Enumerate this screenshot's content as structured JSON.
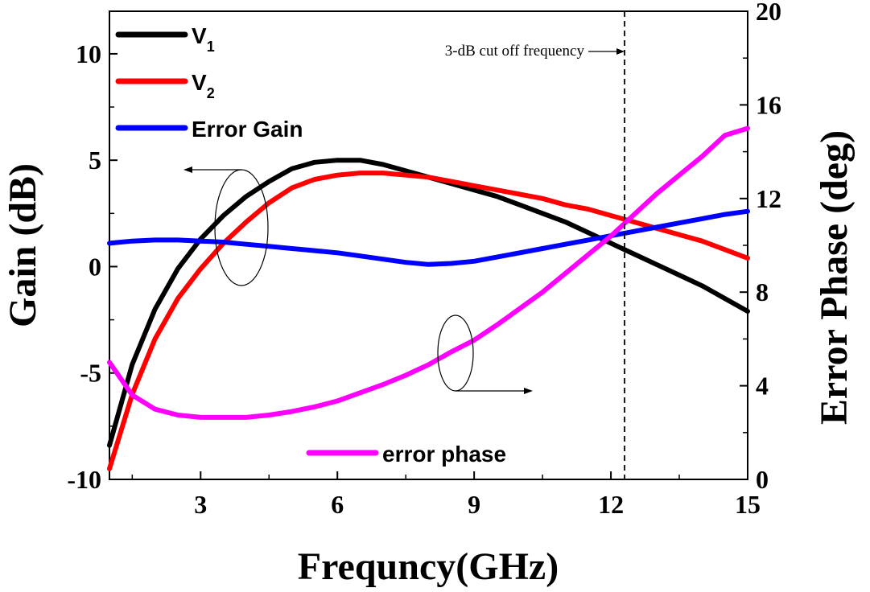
{
  "chart_data": {
    "type": "line",
    "title": "",
    "xlabel": "Frequncy(GHz)",
    "ylabel": "Gain (dB)",
    "y2label": "Error Phase (deg)",
    "xlim": [
      1,
      15
    ],
    "ylim": [
      -10,
      12
    ],
    "y2lim": [
      0,
      20
    ],
    "xticks": [
      3,
      6,
      9,
      12,
      15
    ],
    "yticks": [
      -10,
      -5,
      0,
      5,
      10
    ],
    "y2ticks": [
      0,
      4,
      8,
      12,
      16,
      20
    ],
    "grid": false,
    "legend_position": "top-left",
    "series": [
      {
        "name": "V1",
        "label_main": "V",
        "label_sub": "1",
        "axis": "left",
        "color": "#000000",
        "x": [
          1.0,
          1.5,
          2.0,
          2.5,
          3.0,
          3.5,
          4.0,
          4.5,
          5.0,
          5.5,
          6.0,
          6.5,
          7.0,
          7.5,
          8.0,
          8.5,
          9.0,
          9.5,
          10.0,
          10.5,
          11.0,
          11.5,
          12.0,
          12.5,
          13.0,
          13.5,
          14.0,
          14.5,
          15.0
        ],
        "y": [
          -8.4,
          -4.6,
          -2.0,
          -0.1,
          1.3,
          2.4,
          3.3,
          4.0,
          4.6,
          4.9,
          5.0,
          5.0,
          4.8,
          4.5,
          4.2,
          3.9,
          3.6,
          3.3,
          2.9,
          2.5,
          2.1,
          1.6,
          1.1,
          0.6,
          0.1,
          -0.4,
          -0.9,
          -1.5,
          -2.1
        ]
      },
      {
        "name": "V2",
        "label_main": "V",
        "label_sub": "2",
        "axis": "left",
        "color": "#ff0000",
        "x": [
          1.0,
          1.5,
          2.0,
          2.5,
          3.0,
          3.5,
          4.0,
          4.5,
          5.0,
          5.5,
          6.0,
          6.5,
          7.0,
          7.5,
          8.0,
          8.5,
          9.0,
          9.5,
          10.0,
          10.5,
          11.0,
          11.5,
          12.0,
          12.5,
          13.0,
          13.5,
          14.0,
          14.5,
          15.0
        ],
        "y": [
          -9.5,
          -6.0,
          -3.4,
          -1.5,
          -0.1,
          1.1,
          2.1,
          3.0,
          3.7,
          4.1,
          4.3,
          4.4,
          4.4,
          4.3,
          4.2,
          4.0,
          3.8,
          3.6,
          3.4,
          3.2,
          2.9,
          2.7,
          2.4,
          2.1,
          1.8,
          1.5,
          1.2,
          0.8,
          0.4
        ]
      },
      {
        "name": "Error Gain",
        "axis": "left",
        "color": "#0000ff",
        "x": [
          1.0,
          1.5,
          2.0,
          2.5,
          3.0,
          3.5,
          4.0,
          4.5,
          5.0,
          5.5,
          6.0,
          6.5,
          7.0,
          7.5,
          8.0,
          8.5,
          9.0,
          9.5,
          10.0,
          10.5,
          11.0,
          11.5,
          12.0,
          12.5,
          13.0,
          13.5,
          14.0,
          14.5,
          15.0
        ],
        "y": [
          1.1,
          1.2,
          1.25,
          1.25,
          1.2,
          1.15,
          1.05,
          0.95,
          0.85,
          0.75,
          0.65,
          0.5,
          0.35,
          0.2,
          0.1,
          0.15,
          0.25,
          0.45,
          0.65,
          0.85,
          1.05,
          1.25,
          1.45,
          1.65,
          1.85,
          2.05,
          2.25,
          2.45,
          2.6
        ]
      },
      {
        "name": "error phase",
        "axis": "right",
        "color": "#ff00ff",
        "x": [
          1.0,
          1.5,
          2.0,
          2.5,
          3.0,
          3.5,
          4.0,
          4.5,
          5.0,
          5.5,
          6.0,
          6.5,
          7.0,
          7.5,
          8.0,
          8.5,
          9.0,
          9.5,
          10.0,
          10.5,
          11.0,
          11.5,
          12.0,
          12.5,
          13.0,
          13.5,
          14.0,
          14.5,
          15.0
        ],
        "y": [
          5.0,
          3.6,
          3.0,
          2.75,
          2.65,
          2.65,
          2.65,
          2.75,
          2.9,
          3.1,
          3.35,
          3.7,
          4.05,
          4.45,
          4.9,
          5.45,
          5.95,
          6.6,
          7.3,
          8.0,
          8.8,
          9.6,
          10.4,
          11.3,
          12.2,
          13.0,
          13.8,
          14.7,
          15.0
        ]
      }
    ],
    "annotations": [
      {
        "text": "3-dB cut off frequency",
        "x": 12.3,
        "style": "dashed-vertical-line"
      }
    ]
  }
}
